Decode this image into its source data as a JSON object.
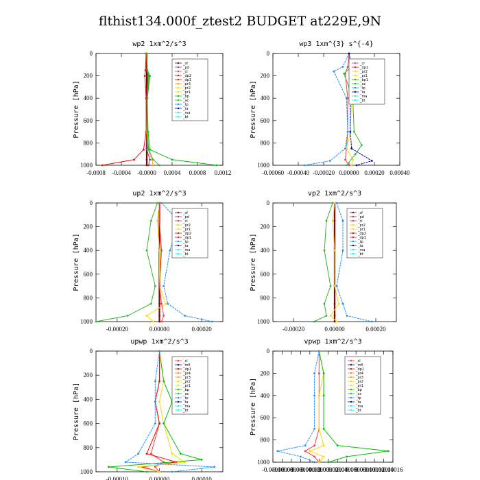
{
  "title": "flthist134.000f_ztest2  BUDGET at229E,9N",
  "colors": {
    "sf": "#8b0000",
    "pd": "#7b3fb0",
    "cl": "#ff3b3b",
    "dp2": "#ff0000",
    "dp1": "#e81010",
    "pr3": "#ffa500",
    "pr2": "#ffd700",
    "pr1": "#e6e600",
    "bp": "#00c000",
    "ac": "#2db82d",
    "tp": "#1e90ff",
    "ta": "#0000cd",
    "ma": "#40e0d0",
    "bt": "#00ffff",
    "mfl": "#4b0082",
    "pr4": "#ff8c00"
  },
  "chart_data": [
    {
      "type": "line",
      "title": "wp2   1xm^2/s^3",
      "ylabel": "Pressure  [hPa]",
      "xlim": [
        -0.0008,
        0.0012
      ],
      "ylim": [
        1000,
        0
      ],
      "xticks": [
        "-0.0008",
        "-0.0004",
        "-0.0000",
        "0.0004",
        "0.0008",
        "0.0012"
      ],
      "yticks": [
        "0",
        "200",
        "400",
        "600",
        "800",
        "1000"
      ],
      "legend_position": "upper-right",
      "legend": [
        "_sf",
        "_pd",
        "_cl",
        "_dp2",
        "_dp1",
        "_pr3",
        "_pr2",
        "_pr1",
        "_bp",
        "_ac",
        "_tp",
        "_ta",
        "_ma",
        "_bt"
      ],
      "series": [
        {
          "name": "_sf",
          "color_key": "sf",
          "x": [
            0,
            0,
            0,
            0,
            0,
            0,
            0,
            0
          ],
          "y": [
            0,
            150,
            300,
            500,
            700,
            850,
            950,
            1000
          ]
        },
        {
          "name": "_pd",
          "color_key": "pd",
          "x": [
            0,
            0,
            2e-05,
            0,
            0,
            0,
            5e-05,
            3e-05
          ],
          "y": [
            0,
            150,
            200,
            400,
            700,
            860,
            950,
            1000
          ]
        },
        {
          "name": "_dp2",
          "color_key": "dp2",
          "x": [
            -1e-05,
            -2e-05,
            -3e-05,
            -1e-05,
            -1e-05,
            -5e-05,
            -0.0002,
            -0.0007
          ],
          "y": [
            0,
            150,
            200,
            400,
            700,
            860,
            950,
            1000
          ]
        },
        {
          "name": "_pr3",
          "color_key": "pr3",
          "x": [
            0,
            1e-05,
            4e-05,
            1e-05,
            0,
            2e-05,
            8e-05,
            0.0001
          ],
          "y": [
            0,
            150,
            200,
            400,
            700,
            860,
            950,
            1000
          ]
        },
        {
          "name": "_bp",
          "color_key": "bp",
          "x": [
            0,
            1e-05,
            5e-05,
            1e-05,
            2e-05,
            5e-05,
            0.0004,
            0.0011
          ],
          "y": [
            0,
            150,
            200,
            400,
            700,
            860,
            950,
            1000
          ]
        },
        {
          "name": "_ac",
          "color_key": "ac",
          "x": [
            0,
            1e-05,
            3e-05,
            1e-05,
            1e-05,
            3e-05,
            0.0001,
            0.0002
          ],
          "y": [
            0,
            150,
            200,
            400,
            700,
            860,
            950,
            1000
          ]
        }
      ]
    },
    {
      "type": "line",
      "title": "wp3   1xm^{3} s^{-4}",
      "ylabel": "Pressure  [hPa]",
      "xlim": [
        -0.0006,
        0.0004
      ],
      "ylim": [
        1000,
        0
      ],
      "xticks": [
        "-0.00060",
        "-0.00040",
        "-0.00020",
        "0.00000",
        "0.00020",
        "0.00040"
      ],
      "yticks": [
        "0",
        "200",
        "400",
        "600",
        "800",
        "1000"
      ],
      "legend_position": "upper-right",
      "legend": [
        "_cl",
        "_dp1",
        "_pr2",
        "_pr1",
        "_bp1",
        "_ac",
        "_tp",
        "_ta",
        "_ma",
        "_bt"
      ],
      "series": [
        {
          "name": "_cl",
          "color_key": "cl",
          "x": [
            0,
            -1e-05,
            -3e-05,
            -1e-05,
            -1e-05,
            -2e-05,
            -3e-05,
            0
          ],
          "y": [
            0,
            120,
            180,
            400,
            700,
            850,
            950,
            1000
          ]
        },
        {
          "name": "_pr1",
          "color_key": "pr1",
          "x": [
            0,
            1e-05,
            3e-05,
            2e-05,
            1e-05,
            -2e-05,
            3e-05,
            2e-05
          ],
          "y": [
            0,
            120,
            180,
            400,
            700,
            850,
            950,
            1000
          ]
        },
        {
          "name": "_ac",
          "color_key": "ac",
          "x": [
            0,
            2e-05,
            -4e-05,
            3e-05,
            4e-05,
            0.0001,
            5e-05,
            -2e-05
          ],
          "y": [
            0,
            120,
            180,
            400,
            700,
            820,
            900,
            1000
          ]
        },
        {
          "name": "_tp",
          "color_key": "tp",
          "x": [
            0,
            -5e-05,
            -0.00012,
            -2e-05,
            -1e-05,
            -3e-05,
            -0.00015,
            -0.00035
          ],
          "y": [
            0,
            120,
            160,
            400,
            700,
            850,
            960,
            1000
          ]
        },
        {
          "name": "_ta",
          "color_key": "ta",
          "x": [
            0,
            2e-05,
            6e-05,
            1e-05,
            1e-05,
            2e-05,
            0.00018,
            6e-05
          ],
          "y": [
            0,
            120,
            160,
            400,
            700,
            850,
            960,
            1000
          ]
        }
      ]
    },
    {
      "type": "line",
      "title": "up2   1xm^2/s^3",
      "ylabel": "Pressure  [hPa]",
      "xlim": [
        -0.0003,
        0.0003
      ],
      "ylim": [
        1000,
        0
      ],
      "xticks": [
        "-0.00020",
        "0.00000",
        "0.00020"
      ],
      "yticks": [
        "0",
        "200",
        "400",
        "600",
        "800",
        "1000"
      ],
      "legend_position": "upper-right",
      "legend": [
        "_sf",
        "_pd",
        "_cl",
        "_pr2",
        "_pr1",
        "_dp2",
        "_dp1",
        "_tp",
        "_ta",
        "_ma",
        "_bt"
      ],
      "series": [
        {
          "name": "_sf",
          "color_key": "sf",
          "x": [
            0,
            0,
            0,
            0,
            0,
            0,
            0
          ],
          "y": [
            0,
            150,
            400,
            700,
            850,
            950,
            1000
          ]
        },
        {
          "name": "_dp1",
          "color_key": "ac",
          "x": [
            -1e-05,
            -4e-05,
            -6e-05,
            -2e-05,
            -4e-05,
            -0.00015,
            -0.0003
          ],
          "y": [
            0,
            150,
            400,
            700,
            850,
            950,
            1000
          ]
        },
        {
          "name": "_tp",
          "color_key": "tp",
          "x": [
            1e-05,
            9e-05,
            5e-05,
            2e-05,
            4e-05,
            0.00012,
            0.00025
          ],
          "y": [
            0,
            150,
            400,
            700,
            850,
            950,
            1000
          ]
        },
        {
          "name": "_pr2",
          "color_key": "pr2",
          "x": [
            0,
            -1e-05,
            0,
            0,
            3e-05,
            -6e-05,
            -3e-05
          ],
          "y": [
            0,
            150,
            400,
            700,
            850,
            950,
            1000
          ]
        },
        {
          "name": "_cl",
          "color_key": "cl",
          "x": [
            0,
            0,
            1e-05,
            0,
            1e-05,
            2e-05,
            1e-05
          ],
          "y": [
            0,
            150,
            400,
            700,
            850,
            950,
            1000
          ]
        }
      ]
    },
    {
      "type": "line",
      "title": "vp2   1xm^2/s^3",
      "ylabel": "Pressure  [hPa]",
      "xlim": [
        -0.0003,
        0.0003
      ],
      "ylim": [
        1000,
        0
      ],
      "xticks": [
        "-0.00020",
        "0.00000",
        "0.00020"
      ],
      "yticks": [
        "0",
        "200",
        "400",
        "600",
        "800",
        "1000"
      ],
      "legend_position": "upper-right",
      "legend": [
        "_sf",
        "_pd",
        "_cl",
        "_pr2",
        "_pr1",
        "_dp2",
        "_dp1",
        "_tp",
        "_ta",
        "_ma",
        "_bt"
      ],
      "series": [
        {
          "name": "_sf",
          "color_key": "sf",
          "x": [
            0,
            0,
            0,
            0,
            0,
            0,
            0
          ],
          "y": [
            0,
            150,
            400,
            700,
            850,
            950,
            1000
          ]
        },
        {
          "name": "_dp1",
          "color_key": "ac",
          "x": [
            -1e-05,
            -4e-05,
            -5e-05,
            -2e-05,
            -5e-05,
            -4e-05,
            -0.0001
          ],
          "y": [
            0,
            150,
            400,
            700,
            850,
            950,
            1000
          ]
        },
        {
          "name": "_tp",
          "color_key": "tp",
          "x": [
            1e-05,
            4e-05,
            4e-05,
            1e-05,
            4e-05,
            6e-05,
            0.00018
          ],
          "y": [
            0,
            150,
            400,
            700,
            850,
            950,
            1000
          ]
        },
        {
          "name": "_pr2",
          "color_key": "pr2",
          "x": [
            0,
            -1e-05,
            0,
            0,
            2e-05,
            -2e-05,
            1e-05
          ],
          "y": [
            0,
            150,
            400,
            700,
            850,
            950,
            1000
          ]
        }
      ]
    },
    {
      "type": "line",
      "title": "upwp   1xm^2/s^3",
      "ylabel": "Pressure  [hPa]",
      "xlim": [
        -0.00015,
        0.00015
      ],
      "ylim": [
        1000,
        0
      ],
      "xticks": [
        "-0.00010",
        "0.00000",
        "0.00010"
      ],
      "yticks": [
        "0",
        "200",
        "400",
        "600",
        "800",
        "1000"
      ],
      "legend_position": "upper-right",
      "legend": [
        "_cl",
        "_mfl",
        "_dp1",
        "_pr4",
        "_pr3",
        "_pr2",
        "_pr1",
        "_bp",
        "_ac",
        "_tp",
        "_ta",
        "_ma",
        "_bt"
      ],
      "series": [
        {
          "name": "_cl",
          "color_key": "cl",
          "x": [
            0,
            0,
            -1e-05,
            0,
            -2e-05,
            1e-05,
            -1e-05,
            0
          ],
          "y": [
            0,
            250,
            420,
            600,
            850,
            920,
            960,
            1000
          ]
        },
        {
          "name": "_dp1",
          "color_key": "dp2",
          "x": [
            0,
            0,
            -1e-05,
            0,
            -3e-05,
            4e-05,
            -4e-05,
            0
          ],
          "y": [
            0,
            250,
            420,
            600,
            850,
            920,
            960,
            1000
          ]
        },
        {
          "name": "_pr2",
          "color_key": "pr2",
          "x": [
            0,
            1e-05,
            0,
            1e-05,
            3e-05,
            6e-05,
            -5e-05,
            0
          ],
          "y": [
            0,
            250,
            420,
            600,
            850,
            920,
            960,
            1000
          ]
        },
        {
          "name": "_bp",
          "color_key": "bp",
          "x": [
            0,
            1e-05,
            3e-05,
            1e-05,
            5e-05,
            0.0001,
            -0.00012,
            -3e-05
          ],
          "y": [
            0,
            250,
            420,
            600,
            850,
            900,
            960,
            1000
          ]
        },
        {
          "name": "_tp",
          "color_key": "tp",
          "x": [
            0,
            -1e-05,
            -1e-05,
            -1e-05,
            -5e-05,
            -8e-05,
            0.00013,
            3e-05
          ],
          "y": [
            0,
            250,
            420,
            600,
            850,
            920,
            960,
            1000
          ]
        }
      ]
    },
    {
      "type": "line",
      "title": "vpwp   1xm^2/s^3",
      "ylabel": "Pressure  [hPa]",
      "xlim": [
        -0.0001,
        0.00016
      ],
      "ylim": [
        1000,
        0
      ],
      "xticks": [
        "-0.00010",
        "-0.00008",
        "-0.00006",
        "-0.00004",
        "-0.00002",
        "0.00000",
        "0.00002",
        "0.00004",
        "0.00006",
        "0.00008",
        "0.00010",
        "0.00012",
        "0.00014",
        "0.00016"
      ],
      "yticks": [
        "0",
        "200",
        "400",
        "600",
        "800",
        "1000"
      ],
      "legend_position": "upper-right",
      "legend": [
        "_cl",
        "_mfl",
        "_dp1",
        "_pr4",
        "_pr3",
        "_pr2",
        "_pr1",
        "_bp",
        "_ac",
        "_tp",
        "_ta",
        "_ma",
        "_bt"
      ],
      "series": [
        {
          "name": "_cl",
          "color_key": "cl",
          "x": [
            0,
            0,
            0,
            0,
            -1e-05,
            -3e-05,
            -1e-05,
            0
          ],
          "y": [
            0,
            200,
            400,
            700,
            850,
            900,
            950,
            1000
          ]
        },
        {
          "name": "_pr2",
          "color_key": "pr2",
          "x": [
            0,
            1e-05,
            0,
            0,
            1e-05,
            -2e-05,
            1e-05,
            0
          ],
          "y": [
            0,
            200,
            400,
            700,
            850,
            900,
            950,
            1000
          ]
        },
        {
          "name": "_bp",
          "color_key": "bp",
          "x": [
            0,
            1e-05,
            1e-05,
            1e-05,
            4e-05,
            0.00015,
            6e-05,
            2e-05
          ],
          "y": [
            0,
            200,
            400,
            700,
            850,
            900,
            950,
            1000
          ]
        },
        {
          "name": "_tp",
          "color_key": "tp",
          "x": [
            0,
            -1e-05,
            -1e-05,
            -1e-05,
            -3e-05,
            -9e-05,
            -4e-05,
            -1e-05
          ],
          "y": [
            0,
            200,
            400,
            700,
            850,
            900,
            950,
            1000
          ]
        }
      ]
    }
  ]
}
